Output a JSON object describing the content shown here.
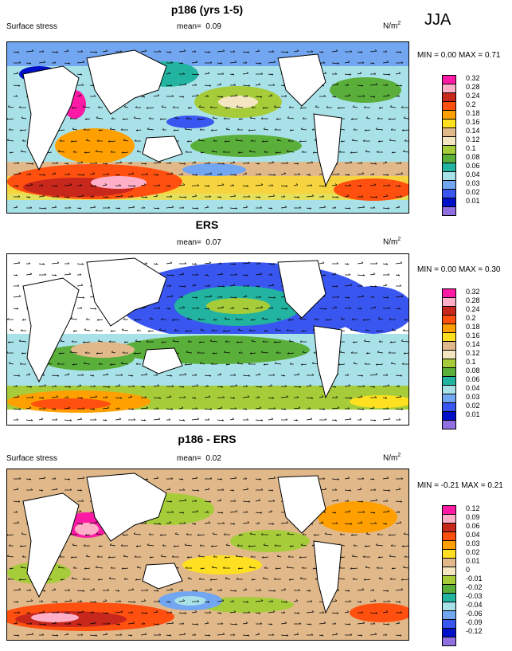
{
  "season": "JJA",
  "panels": [
    {
      "title": "p186 (yrs 1-5)",
      "left_label": "Surface stress",
      "mean_label": "mean=",
      "mean_value": "0.09",
      "units": "N/m",
      "units_exp": "2",
      "minmax": "MIN =  0.00 MAX =  0.71",
      "legend": [
        {
          "label": "0.32",
          "color": "#ff1aa6"
        },
        {
          "label": "0.28",
          "color": "#ffb0c8"
        },
        {
          "label": "0.24",
          "color": "#c8281c"
        },
        {
          "label": "0.2",
          "color": "#ff5010"
        },
        {
          "label": "0.18",
          "color": "#ffa000"
        },
        {
          "label": "0.16",
          "color": "#ffe020"
        },
        {
          "label": "0.14",
          "color": "#e0b88a"
        },
        {
          "label": "0.12",
          "color": "#f4e6c0"
        },
        {
          "label": "0.1",
          "color": "#a6cc3a"
        },
        {
          "label": "0.08",
          "color": "#5aae3a"
        },
        {
          "label": "0.06",
          "color": "#22b4a0"
        },
        {
          "label": "0.04",
          "color": "#a8e2e8"
        },
        {
          "label": "0.03",
          "color": "#72a6f0"
        },
        {
          "label": "0.02",
          "color": "#3a56f0"
        },
        {
          "label": "0.01",
          "color": "#0010c8"
        },
        {
          "label": "",
          "color": "#9070e0"
        }
      ]
    },
    {
      "title": "ERS",
      "left_label": "Surface stress",
      "mean_label": "mean=",
      "mean_value": "0.07",
      "units": "N/m",
      "units_exp": "2",
      "minmax": "MIN =  0.00 MAX =  0.30",
      "legend": [
        {
          "label": "0.32",
          "color": "#ff1aa6"
        },
        {
          "label": "0.28",
          "color": "#ffb0c8"
        },
        {
          "label": "0.24",
          "color": "#c8281c"
        },
        {
          "label": "0.2",
          "color": "#ff5010"
        },
        {
          "label": "0.18",
          "color": "#ffa000"
        },
        {
          "label": "0.16",
          "color": "#ffe020"
        },
        {
          "label": "0.14",
          "color": "#e0b88a"
        },
        {
          "label": "0.12",
          "color": "#f4e6c0"
        },
        {
          "label": "0.1",
          "color": "#a6cc3a"
        },
        {
          "label": "0.08",
          "color": "#5aae3a"
        },
        {
          "label": "0.06",
          "color": "#22b4a0"
        },
        {
          "label": "0.04",
          "color": "#a8e2e8"
        },
        {
          "label": "0.03",
          "color": "#72a6f0"
        },
        {
          "label": "0.02",
          "color": "#3a56f0"
        },
        {
          "label": "0.01",
          "color": "#0010c8"
        },
        {
          "label": "",
          "color": "#9070e0"
        }
      ]
    },
    {
      "title": "p186 - ERS",
      "left_label": "Surface stress",
      "mean_label": "mean=",
      "mean_value": "0.02",
      "units": "N/m",
      "units_exp": "2",
      "minmax": "MIN = -0.21 MAX =  0.21",
      "legend": [
        {
          "label": "0.12",
          "color": "#ff1aa6"
        },
        {
          "label": "0.09",
          "color": "#ffb0c8"
        },
        {
          "label": "0.06",
          "color": "#c8281c"
        },
        {
          "label": "0.04",
          "color": "#ff5010"
        },
        {
          "label": "0.03",
          "color": "#ffa000"
        },
        {
          "label": "0.02",
          "color": "#ffe020"
        },
        {
          "label": "0.01",
          "color": "#e0b88a"
        },
        {
          "label": "0",
          "color": "#f4e6c0"
        },
        {
          "label": "-0.01",
          "color": "#a6cc3a"
        },
        {
          "label": "-0.02",
          "color": "#5aae3a"
        },
        {
          "label": "-0.03",
          "color": "#22b4a0"
        },
        {
          "label": "-0.04",
          "color": "#a8e2e8"
        },
        {
          "label": "-0.06",
          "color": "#72a6f0"
        },
        {
          "label": "-0.09",
          "color": "#3a56f0"
        },
        {
          "label": "-0.12",
          "color": "#0010c8"
        },
        {
          "label": "",
          "color": "#9070e0"
        }
      ]
    }
  ]
}
